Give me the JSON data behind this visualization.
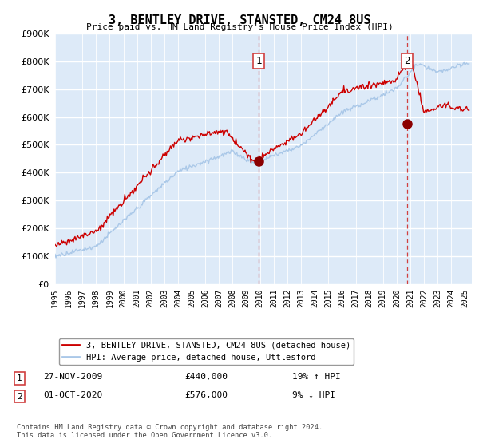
{
  "title": "3, BENTLEY DRIVE, STANSTED, CM24 8US",
  "subtitle": "Price paid vs. HM Land Registry's House Price Index (HPI)",
  "ylim": [
    0,
    900000
  ],
  "yticks": [
    0,
    100000,
    200000,
    300000,
    400000,
    500000,
    600000,
    700000,
    800000,
    900000
  ],
  "xlim_start": 1995.0,
  "xlim_end": 2025.5,
  "sale1_date": 2009.9,
  "sale1_price": 440000,
  "sale2_date": 2020.75,
  "sale2_price": 576000,
  "legend_line1": "3, BENTLEY DRIVE, STANSTED, CM24 8US (detached house)",
  "legend_line2": "HPI: Average price, detached house, Uttlesford",
  "footer": "Contains HM Land Registry data © Crown copyright and database right 2024.\nThis data is licensed under the Open Government Licence v3.0.",
  "hpi_color": "#aac8e8",
  "price_color": "#cc0000",
  "sale_marker_color": "#8b0000",
  "vline_color": "#d04040",
  "plot_bg_color": "#ddeaf8",
  "grid_color": "#ffffff"
}
